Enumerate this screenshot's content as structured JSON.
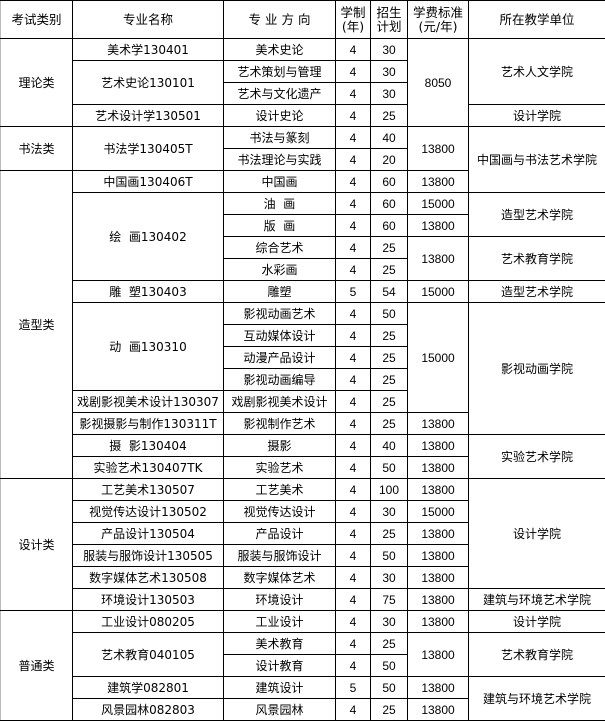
{
  "headers": [
    "考试类别",
    "专业名称",
    "专 业 方 向",
    "学制\n(年)",
    "招生\n计划",
    "学费标准\n(元/年)",
    "所在教学单位"
  ],
  "rows": [
    [
      {
        "t": "理论类",
        "s": 4
      },
      {
        "t": "美术学130401"
      },
      {
        "t": "美术史论"
      },
      {
        "t": "4"
      },
      {
        "t": "30"
      },
      {
        "t": "8050",
        "s": 4
      },
      {
        "t": "艺术人文学院",
        "s": 3
      }
    ],
    [
      {
        "t": "艺术史论130101",
        "s": 2
      },
      {
        "t": "艺术策划与管理"
      },
      {
        "t": "4"
      },
      {
        "t": "30"
      }
    ],
    [
      {
        "t": "艺术与文化遗产"
      },
      {
        "t": "4"
      },
      {
        "t": "30"
      }
    ],
    [
      {
        "t": "艺术设计学130501"
      },
      {
        "t": "设计史论"
      },
      {
        "t": "4"
      },
      {
        "t": "25"
      },
      {
        "t": "设计学院"
      }
    ],
    [
      {
        "t": "书法类",
        "s": 2
      },
      {
        "t": "书法学130405T",
        "s": 2
      },
      {
        "t": "书法与篆刻"
      },
      {
        "t": "4"
      },
      {
        "t": "40"
      },
      {
        "t": "13800",
        "s": 2
      },
      {
        "t": "中国画与书法艺术学院",
        "s": 3
      }
    ],
    [
      {
        "t": "书法理论与实践"
      },
      {
        "t": "4"
      },
      {
        "t": "20"
      }
    ],
    [
      {
        "t": "造型类",
        "s": 14
      },
      {
        "t": "中国画130406T"
      },
      {
        "t": "中国画"
      },
      {
        "t": "4"
      },
      {
        "t": "60"
      },
      {
        "t": "13800"
      }
    ],
    [
      {
        "t": "绘  画130402",
        "s": 4
      },
      {
        "t": "油  画"
      },
      {
        "t": "4"
      },
      {
        "t": "60"
      },
      {
        "t": "15000"
      },
      {
        "t": "造型艺术学院",
        "s": 2
      }
    ],
    [
      {
        "t": "版  画"
      },
      {
        "t": "4"
      },
      {
        "t": "60"
      },
      {
        "t": "13800"
      }
    ],
    [
      {
        "t": "综合艺术"
      },
      {
        "t": "4"
      },
      {
        "t": "25"
      },
      {
        "t": "13800",
        "s": 2
      },
      {
        "t": "艺术教育学院",
        "s": 2
      }
    ],
    [
      {
        "t": "水彩画"
      },
      {
        "t": "4"
      },
      {
        "t": "25"
      }
    ],
    [
      {
        "t": "雕  塑130403"
      },
      {
        "t": "雕塑"
      },
      {
        "t": "5"
      },
      {
        "t": "54"
      },
      {
        "t": "15000"
      },
      {
        "t": "造型艺术学院"
      }
    ],
    [
      {
        "t": "动  画130310",
        "s": 4
      },
      {
        "t": "影视动画艺术"
      },
      {
        "t": "4"
      },
      {
        "t": "50"
      },
      {
        "t": "15000",
        "s": 5
      },
      {
        "t": "影视动画学院",
        "s": 6
      }
    ],
    [
      {
        "t": "互动媒体设计"
      },
      {
        "t": "4"
      },
      {
        "t": "25"
      }
    ],
    [
      {
        "t": "动漫产品设计"
      },
      {
        "t": "4"
      },
      {
        "t": "25"
      }
    ],
    [
      {
        "t": "影视动画编导"
      },
      {
        "t": "4"
      },
      {
        "t": "25"
      }
    ],
    [
      {
        "t": "戏剧影视美术设计130307"
      },
      {
        "t": "戏剧影视美术设计"
      },
      {
        "t": "4"
      },
      {
        "t": "25"
      }
    ],
    [
      {
        "t": "影视摄影与制作130311T"
      },
      {
        "t": "影视制作艺术"
      },
      {
        "t": "4"
      },
      {
        "t": "25"
      },
      {
        "t": "13800"
      }
    ],
    [
      {
        "t": "摄  影130404"
      },
      {
        "t": "摄影"
      },
      {
        "t": "4"
      },
      {
        "t": "40"
      },
      {
        "t": "13800"
      },
      {
        "t": "实验艺术学院",
        "s": 2
      }
    ],
    [
      {
        "t": "实验艺术130407TK"
      },
      {
        "t": "实验艺术"
      },
      {
        "t": "4"
      },
      {
        "t": "50"
      },
      {
        "t": "13800"
      }
    ],
    [
      {
        "t": "设计类",
        "s": 6
      },
      {
        "t": "工艺美术130507"
      },
      {
        "t": "工艺美术"
      },
      {
        "t": "4"
      },
      {
        "t": "100"
      },
      {
        "t": "13800"
      },
      {
        "t": "设计学院",
        "s": 5
      }
    ],
    [
      {
        "t": "视觉传达设计130502"
      },
      {
        "t": "视觉传达设计"
      },
      {
        "t": "4"
      },
      {
        "t": "30"
      },
      {
        "t": "15000"
      }
    ],
    [
      {
        "t": "产品设计130504"
      },
      {
        "t": "产品设计"
      },
      {
        "t": "4"
      },
      {
        "t": "25"
      },
      {
        "t": "13800"
      }
    ],
    [
      {
        "t": "服装与服饰设计130505"
      },
      {
        "t": "服装与服饰设计"
      },
      {
        "t": "4"
      },
      {
        "t": "50"
      },
      {
        "t": "13800"
      }
    ],
    [
      {
        "t": "数字媒体艺术130508"
      },
      {
        "t": "数字媒体艺术"
      },
      {
        "t": "4"
      },
      {
        "t": "30"
      },
      {
        "t": "13800"
      }
    ],
    [
      {
        "t": "环境设计130503"
      },
      {
        "t": "环境设计"
      },
      {
        "t": "4"
      },
      {
        "t": "75"
      },
      {
        "t": "13800"
      },
      {
        "t": "建筑与环境艺术学院"
      }
    ],
    [
      {
        "t": "普通类",
        "s": 5
      },
      {
        "t": "工业设计080205"
      },
      {
        "t": "工业设计"
      },
      {
        "t": "4"
      },
      {
        "t": "30"
      },
      {
        "t": "13800"
      },
      {
        "t": "设计学院"
      }
    ],
    [
      {
        "t": "艺术教育040105",
        "s": 2
      },
      {
        "t": "美术教育"
      },
      {
        "t": "4"
      },
      {
        "t": "25"
      },
      {
        "t": "13800",
        "s": 2
      },
      {
        "t": "艺术教育学院",
        "s": 2
      }
    ],
    [
      {
        "t": "设计教育"
      },
      {
        "t": "4"
      },
      {
        "t": "50"
      }
    ],
    [
      {
        "t": "建筑学082801"
      },
      {
        "t": "建筑设计"
      },
      {
        "t": "5"
      },
      {
        "t": "50"
      },
      {
        "t": "13800"
      },
      {
        "t": "建筑与环境艺术学院",
        "s": 2
      }
    ],
    [
      {
        "t": "风景园林082803"
      },
      {
        "t": "风景园林"
      },
      {
        "t": "4"
      },
      {
        "t": "25"
      },
      {
        "t": "13800"
      }
    ]
  ]
}
